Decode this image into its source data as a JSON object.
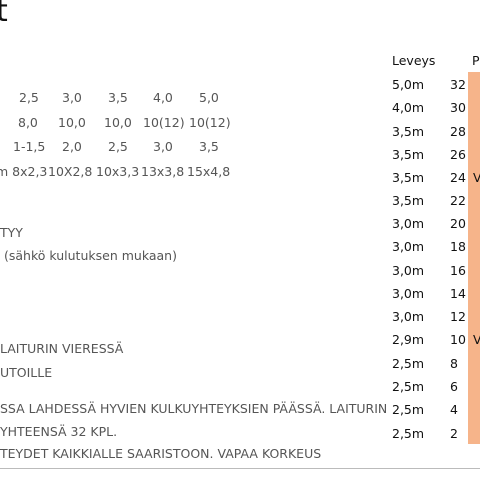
{
  "heading_fragment": "t",
  "grid_rows": [
    [
      "2,5",
      "3,0",
      "3,5",
      "4,0",
      "5,0"
    ],
    [
      "8,0",
      "10,0",
      "10,0",
      "10(12)",
      "10(12)"
    ],
    [
      "1-1,5",
      "2,0",
      "2,5",
      "3,0",
      "3,5"
    ],
    [
      "m 8x2,3",
      "10X2,8",
      "10x3,3",
      "13x3,8",
      "15x4,8"
    ]
  ],
  "info_lines": [
    "TYY",
    "(sähkö kulutuksen mukaan)",
    "LAITURIN VIERESSÄ",
    "UTOILLE",
    "SSA LAHDESSÄ HYVIEN KULKUYHTEYKSIEN PÄÄSSÄ. LAITURIN",
    "YHTEENSÄ 32 KPL.",
    "TEYDET KAIKKIALLE SAARISTOON. VAPAA KORKEUS"
  ],
  "table": {
    "header_width": "Leveys",
    "header_place": "P",
    "rows": [
      {
        "width": "5,0m",
        "place": "32",
        "tag": ""
      },
      {
        "width": "4,0m",
        "place": "30",
        "tag": ""
      },
      {
        "width": "3,5m",
        "place": "28",
        "tag": ""
      },
      {
        "width": "3,5m",
        "place": "26",
        "tag": ""
      },
      {
        "width": "3,5m",
        "place": "24",
        "tag": "V"
      },
      {
        "width": "3,5m",
        "place": "22",
        "tag": ""
      },
      {
        "width": "3,0m",
        "place": "20",
        "tag": ""
      },
      {
        "width": "3,0m",
        "place": "18",
        "tag": ""
      },
      {
        "width": "3,0m",
        "place": "16",
        "tag": ""
      },
      {
        "width": "3,0m",
        "place": "14",
        "tag": ""
      },
      {
        "width": "3,0m",
        "place": "12",
        "tag": ""
      },
      {
        "width": "2,9m",
        "place": "10",
        "tag": "V"
      },
      {
        "width": "2,5m",
        "place": "8",
        "tag": ""
      },
      {
        "width": "2,5m",
        "place": "6",
        "tag": ""
      },
      {
        "width": "2,5m",
        "place": "4",
        "tag": ""
      },
      {
        "width": "2,5m",
        "place": "2",
        "tag": ""
      }
    ]
  },
  "colors": {
    "highlight": "#f6b48a"
  }
}
